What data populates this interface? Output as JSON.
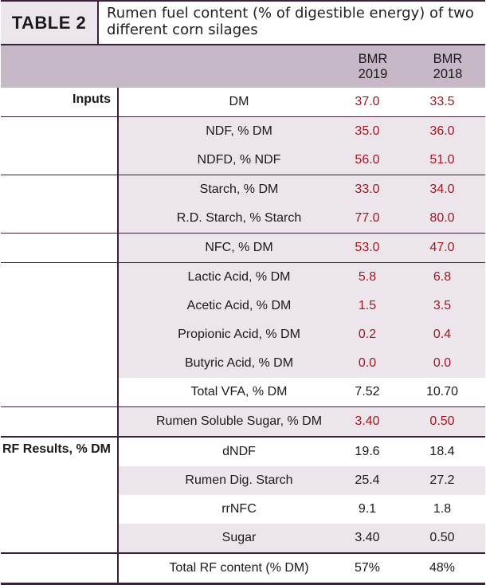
{
  "table": {
    "tag": "TABLE 2",
    "caption": "Rumen fuel content (% of digestible energy) of two different corn silages",
    "columns": [
      "BMR 2019",
      "BMR 2018"
    ],
    "column_lines": [
      [
        "BMR",
        "2019"
      ],
      [
        "BMR",
        "2018"
      ]
    ],
    "groups": [
      {
        "label": "Inputs",
        "rows": [
          {
            "param": "DM",
            "v1": "37.0",
            "v2": "33.5",
            "red": true
          },
          {
            "param": "NDF, % DM",
            "v1": "35.0",
            "v2": "36.0",
            "red": true
          },
          {
            "param": "NDFD, % NDF",
            "v1": "56.0",
            "v2": "51.0",
            "red": true
          },
          {
            "param": "Starch, % DM",
            "v1": "33.0",
            "v2": "34.0",
            "red": true
          },
          {
            "param": "R.D. Starch, % Starch",
            "v1": "77.0",
            "v2": "80.0",
            "red": true
          },
          {
            "param": "NFC, % DM",
            "v1": "53.0",
            "v2": "47.0",
            "red": true
          },
          {
            "param": "Lactic Acid, % DM",
            "v1": "5.8",
            "v2": "6.8",
            "red": true
          },
          {
            "param": "Acetic Acid, % DM",
            "v1": "1.5",
            "v2": "3.5",
            "red": true
          },
          {
            "param": "Propionic Acid, % DM",
            "v1": "0.2",
            "v2": "0.4",
            "red": true
          },
          {
            "param": "Butyric Acid, % DM",
            "v1": "0.0",
            "v2": "0.0",
            "red": true
          },
          {
            "param": "Total VFA, % DM",
            "v1": "7.52",
            "v2": "10.70",
            "red": false
          },
          {
            "param": "Rumen Soluble Sugar, % DM",
            "v1": "3.40",
            "v2": "0.50",
            "red": true
          }
        ]
      },
      {
        "label": "RF Results, % DM",
        "rows": [
          {
            "param": "dNDF",
            "v1": "19.6",
            "v2": "18.4",
            "red": false
          },
          {
            "param": "Rumen Dig. Starch",
            "v1": "25.4",
            "v2": "27.2",
            "red": false
          },
          {
            "param": "rrNFC",
            "v1": "9.1",
            "v2": "1.8",
            "red": false
          },
          {
            "param": "Sugar",
            "v1": "3.40",
            "v2": "0.50",
            "red": false
          }
        ]
      }
    ],
    "total": {
      "param": "Total RF content (% DM)",
      "v1": "57%",
      "v2": "48%"
    }
  }
}
